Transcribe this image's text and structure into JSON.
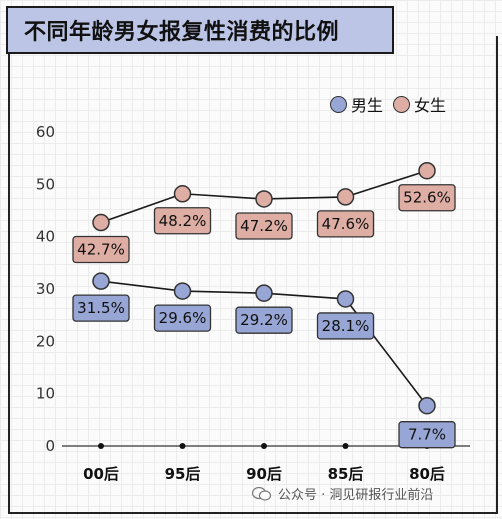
{
  "title": "不同年龄男女报复性消费的比例",
  "watermark": "公众号 · 洞见研报行业前沿",
  "colors": {
    "male": "#98a6d6",
    "female": "#deaea4",
    "title_bg": "#bcc5e6",
    "line": "#1a1a1a"
  },
  "chart_data": {
    "type": "line",
    "title": "不同年龄男女报复性消费的比例",
    "xlabel": "",
    "ylabel": "",
    "categories": [
      "00后",
      "95后",
      "90后",
      "85后",
      "80后"
    ],
    "ylim": [
      0,
      60
    ],
    "yticks": [
      0,
      10,
      20,
      30,
      40,
      50,
      60
    ],
    "grid": true,
    "legend_position": "top-right",
    "series": [
      {
        "name": "男生",
        "values": [
          31.5,
          29.6,
          29.2,
          28.1,
          7.7
        ],
        "labels": [
          "31.5%",
          "29.6%",
          "29.2%",
          "28.1%",
          "7.7%"
        ]
      },
      {
        "name": "女生",
        "values": [
          42.7,
          48.2,
          47.2,
          47.6,
          52.6
        ],
        "labels": [
          "42.7%",
          "48.2%",
          "47.2%",
          "47.6%",
          "52.6%"
        ]
      }
    ]
  }
}
